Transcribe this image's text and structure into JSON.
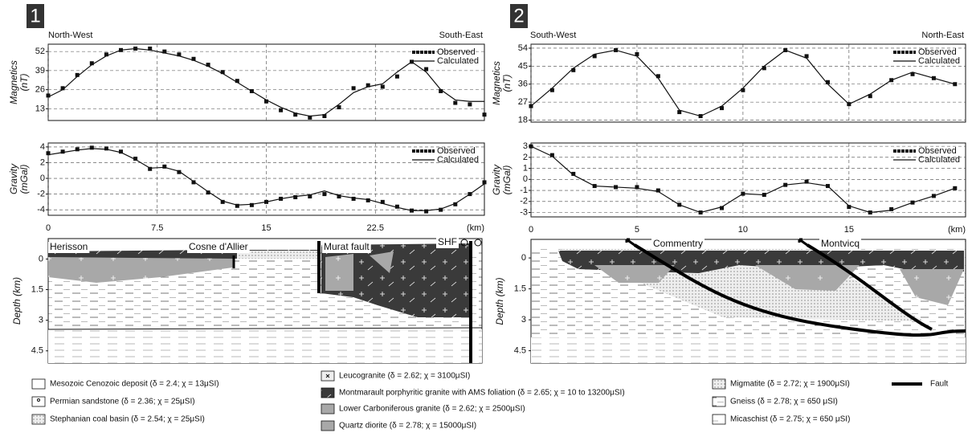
{
  "panels": [
    {
      "number": "1",
      "left": "North-West",
      "right": "South-East"
    },
    {
      "number": "2",
      "left": "South-West",
      "right": "North-East"
    }
  ],
  "chart_data": [
    {
      "type": "line",
      "ylabel": [
        "Magnetics",
        "(nT)"
      ],
      "xlim": [
        0,
        30
      ],
      "xticks": [
        0,
        7.5,
        15,
        22.5
      ],
      "xtick_labels": false,
      "ylim": [
        5,
        57
      ],
      "yticks": [
        13,
        26,
        39,
        52
      ],
      "grid": true,
      "legend": "upper right",
      "x": [
        0,
        1,
        2,
        3,
        4,
        5,
        6,
        7,
        8,
        9,
        10,
        11,
        12,
        13,
        14,
        15,
        16,
        17,
        18,
        19,
        20,
        21,
        22,
        23,
        24,
        25,
        26,
        27,
        28,
        29,
        30
      ],
      "series": [
        {
          "name": "Observed",
          "color": "#111111",
          "marker": "square",
          "values": [
            22,
            27,
            36,
            44,
            50,
            53,
            54,
            54,
            52,
            50,
            47,
            43,
            38,
            32,
            25,
            18,
            12,
            9,
            7,
            8,
            14,
            27,
            29,
            28,
            35,
            45,
            40,
            25,
            17,
            16,
            9
          ]
        },
        {
          "name": "Calculated",
          "color": "#111111",
          "values": [
            21,
            26,
            35,
            43,
            49,
            53,
            54,
            53,
            51,
            49,
            46,
            42,
            37,
            31,
            25,
            19,
            14,
            10,
            8,
            9,
            16,
            24,
            28,
            30,
            38,
            45,
            38,
            26,
            19,
            18,
            18
          ]
        }
      ]
    },
    {
      "type": "line",
      "ylabel": [
        "Gravity",
        "(mGal)"
      ],
      "xlim": [
        0,
        30
      ],
      "xticks": [
        0,
        7.5,
        15,
        22.5
      ],
      "xtick_labels": true,
      "xlabel": "(km)",
      "ylim": [
        -4.7,
        4.5
      ],
      "yticks": [
        -4,
        -2,
        0,
        2,
        4
      ],
      "grid": true,
      "legend": "upper right",
      "x": [
        0,
        1,
        2,
        3,
        4,
        5,
        6,
        7,
        8,
        9,
        10,
        11,
        12,
        13,
        14,
        15,
        16,
        17,
        18,
        19,
        20,
        21,
        22,
        23,
        24,
        25,
        26,
        27,
        28,
        29,
        30
      ],
      "series": [
        {
          "name": "Observed",
          "color": "#111111",
          "marker": "square",
          "values": [
            3.2,
            3.4,
            3.7,
            3.9,
            3.8,
            3.4,
            2.5,
            1.2,
            1.5,
            0.8,
            -0.5,
            -1.8,
            -3.0,
            -3.5,
            -3.4,
            -3.0,
            -2.6,
            -2.4,
            -2.3,
            -2.0,
            -2.3,
            -2.6,
            -2.8,
            -3.0,
            -3.6,
            -4.1,
            -4.2,
            -4.0,
            -3.3,
            -2.0,
            -0.5
          ]
        },
        {
          "name": "Calculated",
          "color": "#111111",
          "values": [
            3.0,
            3.3,
            3.6,
            3.8,
            3.7,
            3.3,
            2.4,
            1.3,
            1.4,
            0.9,
            -0.4,
            -1.7,
            -2.9,
            -3.4,
            -3.3,
            -3.0,
            -2.6,
            -2.3,
            -2.1,
            -1.6,
            -2.2,
            -2.5,
            -2.7,
            -3.2,
            -3.7,
            -4.1,
            -4.1,
            -3.9,
            -3.2,
            -2.0,
            -0.7
          ]
        }
      ]
    },
    {
      "type": "line",
      "ylabel": [
        "Magnetics",
        "(nT)"
      ],
      "xlim": [
        0,
        20.5
      ],
      "xticks": [
        0,
        5,
        10,
        15
      ],
      "xtick_labels": false,
      "ylim": [
        17,
        56
      ],
      "yticks": [
        18,
        27,
        36,
        45,
        54
      ],
      "grid": true,
      "legend": "upper right",
      "x": [
        0,
        1,
        2,
        3,
        4,
        5,
        6,
        7,
        8,
        9,
        10,
        11,
        12,
        13,
        14,
        15,
        16,
        17,
        18,
        19,
        20
      ],
      "series": [
        {
          "name": "Observed",
          "color": "#111111",
          "marker": "square",
          "values": [
            25,
            33,
            43,
            50,
            53,
            51,
            40,
            22,
            20,
            24,
            33,
            44,
            53,
            50,
            37,
            26,
            30,
            38,
            41,
            39,
            36
          ]
        },
        {
          "name": "Calculated",
          "color": "#111111",
          "values": [
            25,
            34,
            44,
            51,
            53,
            50,
            39,
            23,
            20,
            25,
            34,
            45,
            53,
            49,
            36,
            26,
            31,
            38,
            42,
            39,
            36
          ]
        }
      ]
    },
    {
      "type": "line",
      "ylabel": [
        "Gravity",
        "(mGal)"
      ],
      "xlim": [
        0,
        20.5
      ],
      "xticks": [
        0,
        5,
        10,
        15
      ],
      "xtick_labels": true,
      "xlabel": "(km)",
      "ylim": [
        -3.4,
        3.3
      ],
      "yticks": [
        -3,
        -2,
        -1,
        0,
        1,
        2,
        3
      ],
      "grid": true,
      "legend": "upper right",
      "x": [
        0,
        1,
        2,
        3,
        4,
        5,
        6,
        7,
        8,
        9,
        10,
        11,
        12,
        13,
        14,
        15,
        16,
        17,
        18,
        19,
        20
      ],
      "series": [
        {
          "name": "Observed",
          "color": "#111111",
          "marker": "square",
          "values": [
            3.0,
            2.2,
            0.5,
            -0.6,
            -0.7,
            -0.7,
            -1.0,
            -2.3,
            -3.0,
            -2.6,
            -1.3,
            -1.4,
            -0.5,
            -0.2,
            -0.6,
            -2.5,
            -3.0,
            -2.7,
            -2.1,
            -1.5,
            -0.8
          ]
        },
        {
          "name": "Calculated",
          "color": "#111111",
          "values": [
            3.0,
            2.1,
            0.4,
            -0.6,
            -0.7,
            -0.8,
            -1.1,
            -2.3,
            -3.0,
            -2.5,
            -1.3,
            -1.4,
            -0.5,
            -0.3,
            -0.6,
            -2.4,
            -3.0,
            -2.8,
            -2.1,
            -1.5,
            -0.8
          ]
        }
      ]
    }
  ],
  "sections": [
    {
      "ylabel": "Depth (km)",
      "ylim": [
        -1,
        5.1
      ],
      "yticks": [
        0,
        1.5,
        3,
        4.5
      ],
      "labels": [
        "Herisson",
        "Cosne d'Allier",
        "Murat fault",
        "SHF"
      ]
    },
    {
      "ylabel": "Depth (km)",
      "ylim": [
        -0.9,
        5.1
      ],
      "yticks": [
        0,
        1.5,
        3,
        4.5
      ],
      "labels": [
        "Commentry",
        "Montvicq"
      ]
    }
  ],
  "legend": [
    "Mesozoic Cenozoic deposit (δ = 2.4; χ = 13μSI)",
    "Permian sandstone (δ = 2.36; χ = 25μSI)",
    "Stephanian coal basin (δ = 2.54; χ = 25μSI)",
    "Leucogranite (δ = 2.62; χ = 3100μSI)",
    "Montmarault porphyritic granite with AMS foliation (δ = 2.65; χ = 10 to 13200μSI)",
    "Lower Carboniferous granite (δ = 2.62; χ = 2500μSI)",
    "Quartz diorite (δ = 2.78; χ = 15000μSI)",
    "Migmatite (δ = 2.72; χ = 1900μSI)",
    "Gneiss (δ = 2.78; χ = 650 μSI)",
    "Micaschist (δ = 2.75; χ = 650 μSI)",
    "Fault"
  ]
}
